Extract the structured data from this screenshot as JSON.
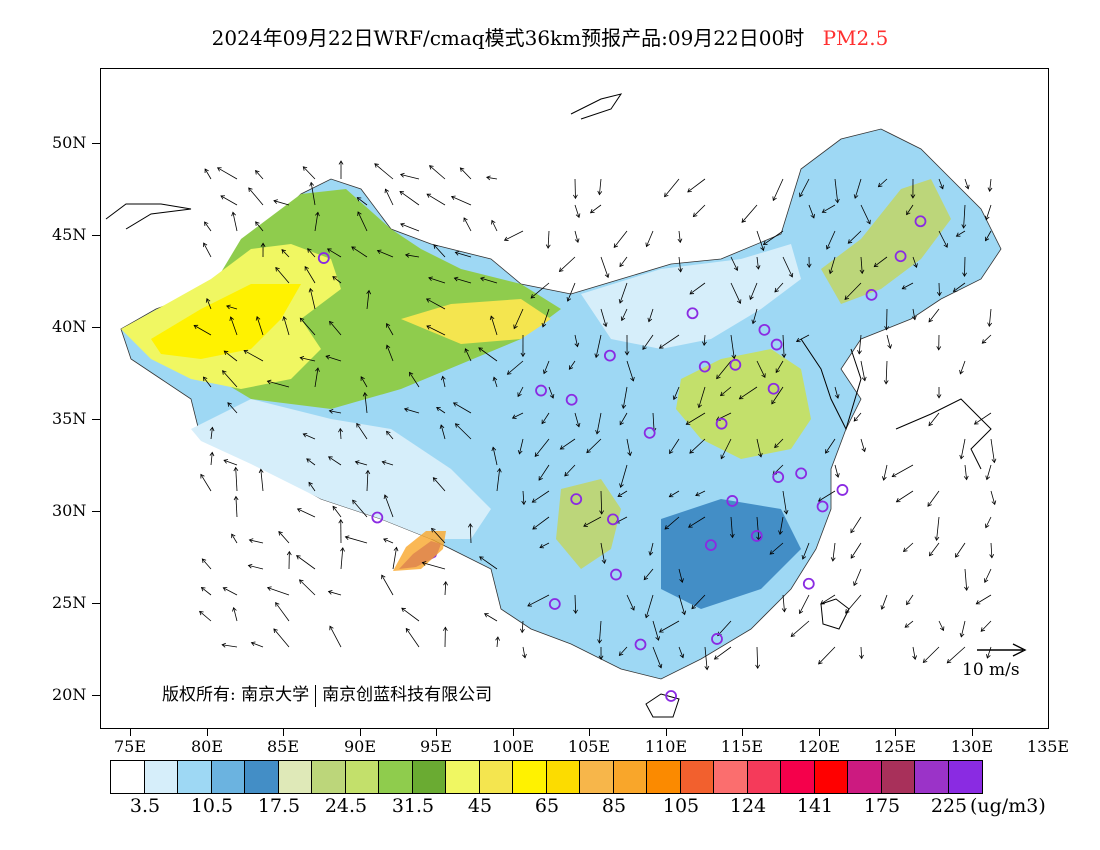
{
  "title": {
    "main": "2024年09月22日WRF/cmaq模式36km预报产品:09月22日00时",
    "variable": "PM2.5"
  },
  "latitude_labels": [
    "50N",
    "45N",
    "40N",
    "35N",
    "30N",
    "25N",
    "20N"
  ],
  "longitude_labels": [
    "75E",
    "80E",
    "85E",
    "90E",
    "95E",
    "100E",
    "105E",
    "110E",
    "115E",
    "120E",
    "125E",
    "130E",
    "135E"
  ],
  "copyright": {
    "part1": "版权所有: 南京大学",
    "part2": "南京创蓝科技有限公司"
  },
  "wind_scale_label": "10 m/s",
  "colorbar": {
    "colors": [
      "#ffffff",
      "#d6eefa",
      "#9ed8f4",
      "#6bb3e0",
      "#438ec6",
      "#dfe9b8",
      "#bcd67a",
      "#c3e06b",
      "#8fcc4d",
      "#6aab32",
      "#f0f762",
      "#f4e54f",
      "#fff200",
      "#fcdc00",
      "#f7b64a",
      "#f9a62a",
      "#fb8a00",
      "#f2602e",
      "#fb6e6e",
      "#f53a5a",
      "#f5004b",
      "#ff0000",
      "#cc1a80",
      "#a8305a",
      "#9b33c8",
      "#8a2be2"
    ],
    "labels": [
      "3.5",
      "10.5",
      "17.5",
      "24.5",
      "31.5",
      "45",
      "65",
      "85",
      "105",
      "124",
      "141",
      "175",
      "225"
    ],
    "unit": "(ug/m3)"
  },
  "map_extent": {
    "lon_min": 73,
    "lon_max": 135,
    "lat_min": 18,
    "lat_max": 54
  },
  "stations": [
    {
      "lon": 87.6,
      "lat": 43.8
    },
    {
      "lon": 91.1,
      "lat": 29.7
    },
    {
      "lon": 101.8,
      "lat": 36.6
    },
    {
      "lon": 103.8,
      "lat": 36.1
    },
    {
      "lon": 106.3,
      "lat": 38.5
    },
    {
      "lon": 111.7,
      "lat": 40.8
    },
    {
      "lon": 112.5,
      "lat": 37.9
    },
    {
      "lon": 114.5,
      "lat": 38.0
    },
    {
      "lon": 116.4,
      "lat": 39.9
    },
    {
      "lon": 117.2,
      "lat": 39.1
    },
    {
      "lon": 117.0,
      "lat": 36.7
    },
    {
      "lon": 113.6,
      "lat": 34.8
    },
    {
      "lon": 108.9,
      "lat": 34.3
    },
    {
      "lon": 104.1,
      "lat": 30.7
    },
    {
      "lon": 106.5,
      "lat": 29.6
    },
    {
      "lon": 106.7,
      "lat": 26.6
    },
    {
      "lon": 102.7,
      "lat": 25.0
    },
    {
      "lon": 108.3,
      "lat": 22.8
    },
    {
      "lon": 113.3,
      "lat": 23.1
    },
    {
      "lon": 110.3,
      "lat": 20.0
    },
    {
      "lon": 112.9,
      "lat": 28.2
    },
    {
      "lon": 114.3,
      "lat": 30.6
    },
    {
      "lon": 115.9,
      "lat": 28.7
    },
    {
      "lon": 117.3,
      "lat": 31.9
    },
    {
      "lon": 118.8,
      "lat": 32.1
    },
    {
      "lon": 120.2,
      "lat": 30.3
    },
    {
      "lon": 121.5,
      "lat": 31.2
    },
    {
      "lon": 119.3,
      "lat": 26.1
    },
    {
      "lon": 123.4,
      "lat": 41.8
    },
    {
      "lon": 125.3,
      "lat": 43.9
    },
    {
      "lon": 126.6,
      "lat": 45.8
    }
  ],
  "pollution_zones": [
    {
      "name": "tarim",
      "color": "#f0f762"
    },
    {
      "name": "hot-spot",
      "color": "#8a2be2"
    }
  ]
}
